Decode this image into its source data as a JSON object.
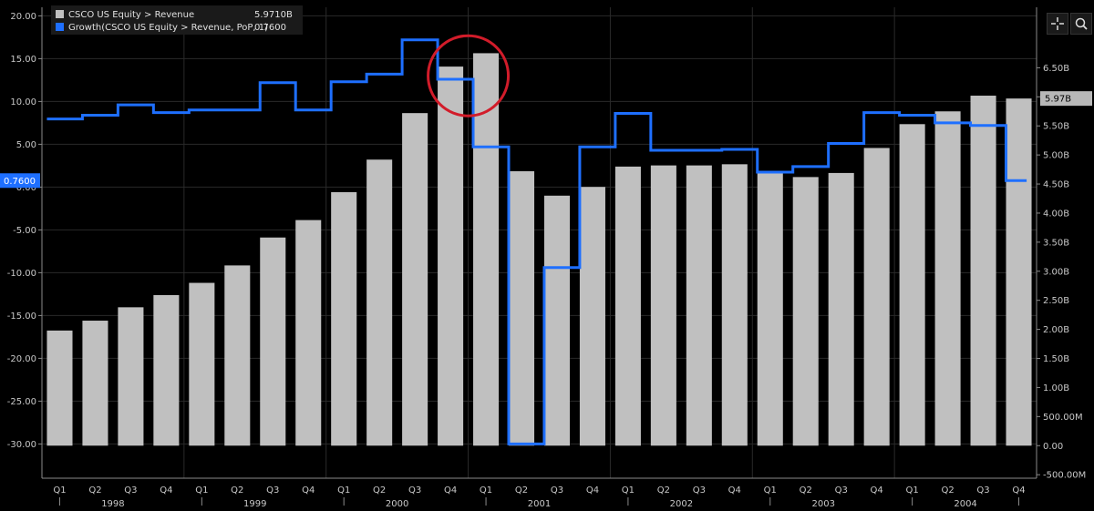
{
  "legend": {
    "items": [
      {
        "label": "CSCO US Equity > Revenue",
        "value": "5.9710B",
        "color": "#c0c0c0"
      },
      {
        "label": "Growth(CSCO US Equity > Revenue, PoP, 1)",
        "value": "0.7600",
        "color": "#1e6fff"
      }
    ]
  },
  "toolbar": {
    "crosshair_icon": "crosshair-icon",
    "zoom_icon": "magnifier-icon"
  },
  "colors": {
    "bar": "#c0c0c0",
    "line": "#1e6fff",
    "highlight_circle": "#d21c2a",
    "axis": "#8a8a8a",
    "grid": "#2a2a2a"
  },
  "chart_data": {
    "type": "bar",
    "categories": [
      "Q1",
      "Q2",
      "Q3",
      "Q4",
      "Q1",
      "Q2",
      "Q3",
      "Q4",
      "Q1",
      "Q2",
      "Q3",
      "Q4",
      "Q1",
      "Q2",
      "Q3",
      "Q4",
      "Q1",
      "Q2",
      "Q3",
      "Q4",
      "Q1",
      "Q2",
      "Q3",
      "Q4",
      "Q1",
      "Q2",
      "Q3",
      "Q4"
    ],
    "years": [
      {
        "label": "1998",
        "start": 0
      },
      {
        "label": "1999",
        "start": 4
      },
      {
        "label": "2000",
        "start": 8
      },
      {
        "label": "2001",
        "start": 12
      },
      {
        "label": "2002",
        "start": 16
      },
      {
        "label": "2003",
        "start": 20
      },
      {
        "label": "2004",
        "start": 24
      }
    ],
    "series": [
      {
        "name": "CSCO US Equity > Revenue",
        "type": "bar",
        "axis": "right",
        "values": [
          1.98,
          2.15,
          2.38,
          2.59,
          2.8,
          3.1,
          3.58,
          3.88,
          4.36,
          4.92,
          5.72,
          6.52,
          6.75,
          4.72,
          4.3,
          4.45,
          4.8,
          4.82,
          4.82,
          4.84,
          4.7,
          4.62,
          4.69,
          5.12,
          5.53,
          5.75,
          6.02,
          5.971
        ]
      },
      {
        "name": "Growth(CSCO US Equity > Revenue, PoP, 1)",
        "type": "step",
        "axis": "left",
        "values": [
          7.95,
          8.4,
          9.6,
          8.7,
          9.0,
          9.0,
          12.2,
          9.0,
          12.3,
          13.2,
          17.2,
          12.6,
          4.7,
          -30.0,
          -9.4,
          4.7,
          8.6,
          4.3,
          4.3,
          4.4,
          1.75,
          2.4,
          5.1,
          8.7,
          8.4,
          7.5,
          7.2,
          0.76
        ]
      }
    ],
    "y_left": {
      "ticks": [
        "20.00",
        "15.00",
        "10.00",
        "5.00",
        "0.00",
        "-5.00",
        "-10.00",
        "-15.00",
        "-20.00",
        "-25.00",
        "-30.00"
      ],
      "lim": [
        -34.0,
        21.0
      ]
    },
    "y_right": {
      "ticks": [
        "6.50B",
        "6.00B",
        "5.50B",
        "5.00B",
        "4.50B",
        "4.00B",
        "3.50B",
        "3.00B",
        "2.50B",
        "2.00B",
        "1.50B",
        "1.00B",
        "500.00M",
        "0.00",
        "-500.00M"
      ],
      "lim": [
        -0.56,
        7.54
      ]
    },
    "last_value_left": "0.7600",
    "last_value_right": "5.97B",
    "highlight": {
      "category_index_from": 11,
      "category_index_to": 12,
      "y_value": 13.0
    }
  }
}
